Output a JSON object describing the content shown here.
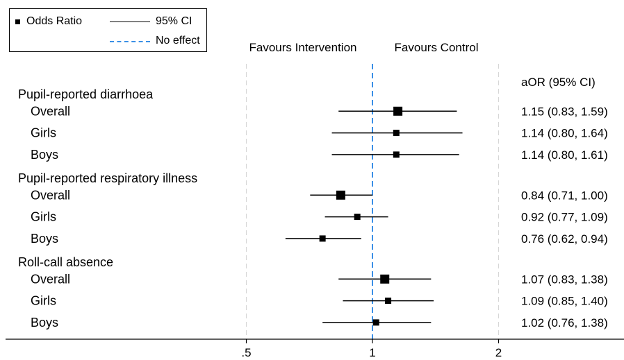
{
  "legend": {
    "odds_ratio": "Odds Ratio",
    "ci": "95% CI",
    "no_effect": "No effect"
  },
  "header": {
    "favours_intervention": "Favours Intervention",
    "favours_control": "Favours Control",
    "aor_column": "aOR (95% CI)"
  },
  "colors": {
    "marker": "#000000",
    "ci_line": "#000000",
    "no_effect_line": "#3a8fe6",
    "gridline": "#d6d6d6"
  },
  "chart_data": {
    "type": "forest",
    "x_scale": "log",
    "xlim": [
      0.35,
      2.5
    ],
    "x_ticks": [
      {
        "value": 0.5,
        "label": ".5"
      },
      {
        "value": 1,
        "label": "1"
      },
      {
        "value": 2,
        "label": "2"
      }
    ],
    "reference_value": 1,
    "groups": [
      {
        "label": "Pupil-reported diarrhoea",
        "rows": [
          {
            "label": "Overall",
            "or": 1.15,
            "lo": 0.83,
            "hi": 1.59,
            "text": "1.15 (0.83, 1.59)",
            "size": "large"
          },
          {
            "label": "Girls",
            "or": 1.14,
            "lo": 0.8,
            "hi": 1.64,
            "text": "1.14 (0.80, 1.64)",
            "size": "small"
          },
          {
            "label": "Boys",
            "or": 1.14,
            "lo": 0.8,
            "hi": 1.61,
            "text": "1.14 (0.80, 1.61)",
            "size": "small"
          }
        ]
      },
      {
        "label": "Pupil-reported respiratory illness",
        "rows": [
          {
            "label": "Overall",
            "or": 0.84,
            "lo": 0.71,
            "hi": 1.0,
            "text": "0.84 (0.71, 1.00)",
            "size": "large"
          },
          {
            "label": "Girls",
            "or": 0.92,
            "lo": 0.77,
            "hi": 1.09,
            "text": "0.92 (0.77, 1.09)",
            "size": "small"
          },
          {
            "label": "Boys",
            "or": 0.76,
            "lo": 0.62,
            "hi": 0.94,
            "text": "0.76 (0.62, 0.94)",
            "size": "small"
          }
        ]
      },
      {
        "label": "Roll-call absence",
        "rows": [
          {
            "label": "Overall",
            "or": 1.07,
            "lo": 0.83,
            "hi": 1.38,
            "text": "1.07 (0.83, 1.38)",
            "size": "large"
          },
          {
            "label": "Girls",
            "or": 1.09,
            "lo": 0.85,
            "hi": 1.4,
            "text": "1.09 (0.85, 1.40)",
            "size": "small"
          },
          {
            "label": "Boys",
            "or": 1.02,
            "lo": 0.76,
            "hi": 1.38,
            "text": "1.02 (0.76, 1.38)",
            "size": "small"
          }
        ]
      }
    ]
  }
}
